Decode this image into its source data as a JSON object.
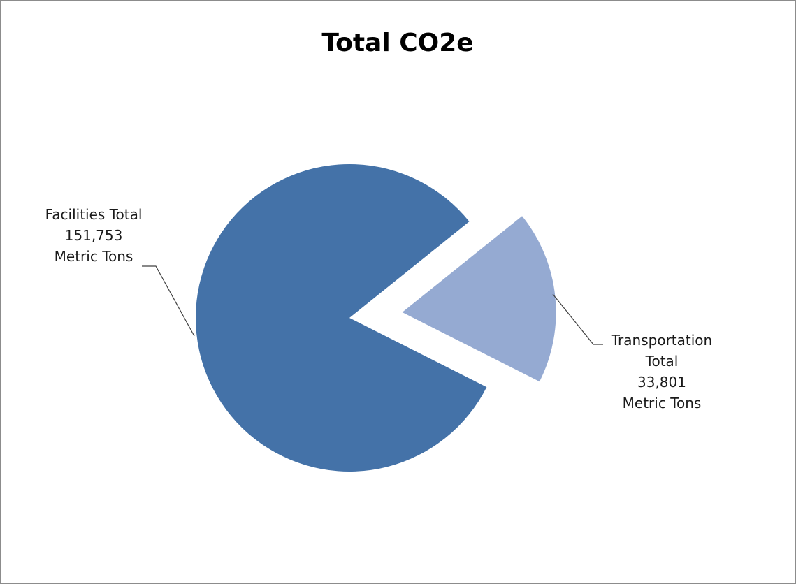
{
  "chart_data": {
    "type": "pie",
    "title": "Total CO2e",
    "slices": [
      {
        "category": "Facilities Total",
        "value": 151753,
        "value_label": "151,753",
        "unit": "Metric Tons",
        "color": "#4472a8",
        "exploded": false,
        "label_lines": [
          "Facilities Total",
          "151,753",
          "Metric Tons"
        ]
      },
      {
        "category": "Transportation Total",
        "value": 33801,
        "value_label": "33,801",
        "unit": "Metric Tons",
        "color": "#95aad2",
        "exploded": true,
        "label_lines": [
          "Transportation",
          "Total",
          "33,801",
          "Metric Tons"
        ]
      }
    ],
    "legend": "none",
    "data_labels": "outside-with-leader-lines"
  }
}
